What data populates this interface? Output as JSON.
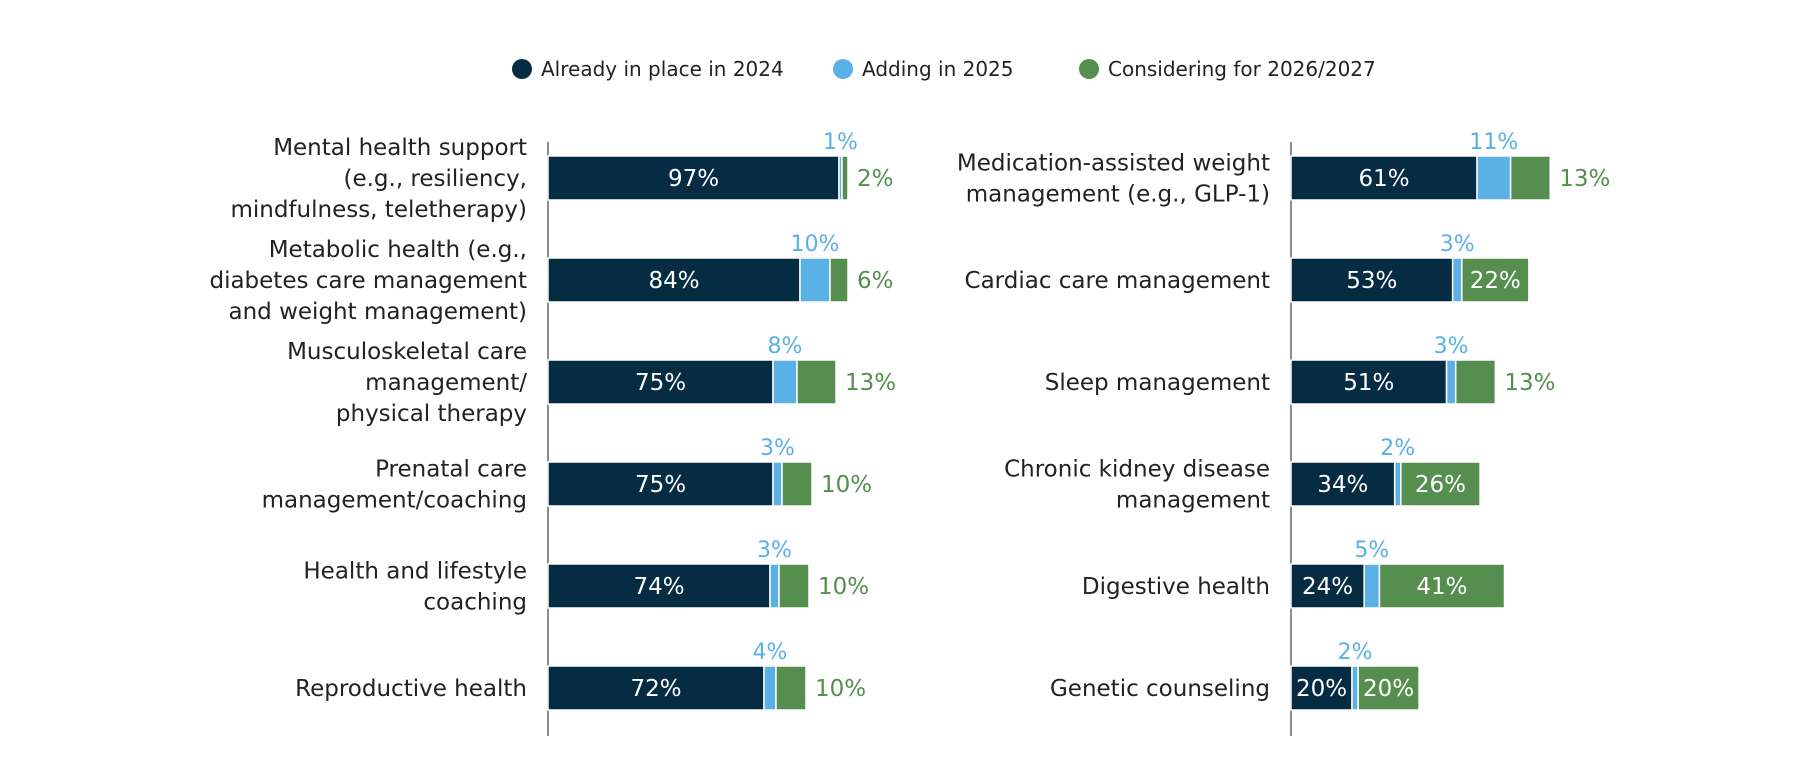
{
  "chart_data": {
    "type": "bar",
    "stacked": true,
    "orientation": "horizontal",
    "legend": {
      "position": "top-center",
      "items": [
        {
          "name": "Already in place in 2024",
          "color": "#062c43"
        },
        {
          "name": "Adding in 2025",
          "color": "#5bb0e5"
        },
        {
          "name": "Considering for 2026/2027",
          "color": "#558e4f"
        }
      ]
    },
    "panels": [
      {
        "categories": [
          "Mental health support (e.g., resiliency, mindfulness, teletherapy)",
          "Metabolic health (e.g., diabetes care management and weight management)",
          "Musculoskeletal care management/ physical therapy",
          "Prenatal care management/coaching",
          "Health and lifestyle coaching",
          "Reproductive health"
        ],
        "category_lines": [
          [
            "Mental health support",
            "(e.g., resiliency,",
            "mindfulness, teletherapy)"
          ],
          [
            "Metabolic health (e.g.,",
            "diabetes care management",
            "and weight management)"
          ],
          [
            "Musculoskeletal care",
            "management/",
            "physical therapy"
          ],
          [
            "Prenatal care",
            "management/coaching"
          ],
          [
            "Health and lifestyle",
            "coaching"
          ],
          [
            "Reproductive health"
          ]
        ],
        "series": [
          {
            "name": "Already in place in 2024",
            "values": [
              97,
              84,
              75,
              75,
              74,
              72
            ],
            "labels": [
              "97%",
              "84%",
              "75%",
              "75%",
              "74%",
              "72%"
            ]
          },
          {
            "name": "Adding in 2025",
            "values": [
              1,
              10,
              8,
              3,
              3,
              4
            ],
            "labels": [
              "1%",
              "10%",
              "8%",
              "3%",
              "3%",
              "4%"
            ]
          },
          {
            "name": "Considering for 2026/2027",
            "values": [
              2,
              6,
              13,
              10,
              10,
              10
            ],
            "labels": [
              "2%",
              "6%",
              "13%",
              "10%",
              "10%",
              "10%"
            ]
          }
        ]
      },
      {
        "categories": [
          "Medication-assisted weight management (e.g., GLP-1)",
          "Cardiac care management",
          "Sleep management",
          "Chronic kidney disease management",
          "Digestive health",
          "Genetic counseling"
        ],
        "category_lines": [
          [
            "Medication-assisted weight",
            "management (e.g., GLP-1)"
          ],
          [
            "Cardiac care management"
          ],
          [
            "Sleep management"
          ],
          [
            "Chronic kidney disease",
            "management"
          ],
          [
            "Digestive health"
          ],
          [
            "Genetic counseling"
          ]
        ],
        "series": [
          {
            "name": "Already in place in 2024",
            "values": [
              61,
              53,
              51,
              34,
              24,
              20
            ],
            "labels": [
              "61%",
              "53%",
              "51%",
              "34%",
              "24%",
              "20%"
            ]
          },
          {
            "name": "Adding in 2025",
            "values": [
              11,
              3,
              3,
              2,
              5,
              2
            ],
            "labels": [
              "11%",
              "3%",
              "3%",
              "2%",
              "5%",
              "2%"
            ]
          },
          {
            "name": "Considering for 2026/2027",
            "values": [
              13,
              22,
              13,
              26,
              41,
              20
            ],
            "labels": [
              "13%",
              "22%",
              "13%",
              "26%",
              "41%",
              "20%"
            ]
          }
        ]
      }
    ],
    "xlim": [
      0,
      100
    ],
    "grid": false
  }
}
